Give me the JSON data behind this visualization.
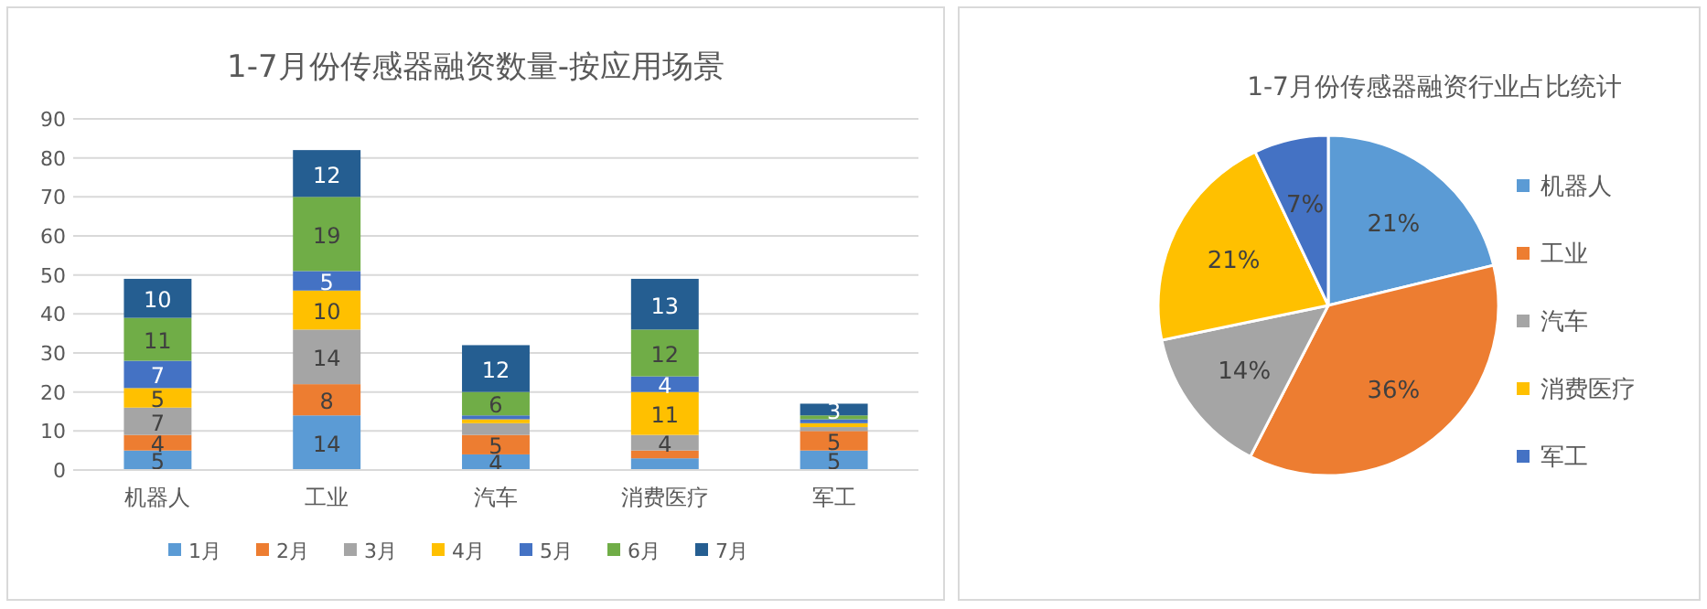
{
  "chart_data": [
    {
      "type": "bar",
      "title": "1-7月份传感器融资数量-按应用场景",
      "stacked": true,
      "categories": [
        "机器人",
        "工业",
        "汽车",
        "消费医疗",
        "军工"
      ],
      "ylim": [
        0,
        90
      ],
      "yticks": [
        0,
        10,
        20,
        30,
        40,
        50,
        60,
        70,
        80,
        90
      ],
      "grid": "y",
      "legend": "bottom",
      "series": [
        {
          "name": "1月",
          "color": "#5b9bd5",
          "values": [
            5,
            14,
            4,
            3,
            5
          ],
          "value_labels": [
            "5",
            "14",
            "4",
            null,
            "5"
          ]
        },
        {
          "name": "2月",
          "color": "#ed7d31",
          "values": [
            4,
            8,
            5,
            2,
            5
          ],
          "value_labels": [
            "4",
            "8",
            "5",
            null,
            "5"
          ]
        },
        {
          "name": "3月",
          "color": "#a5a5a5",
          "values": [
            7,
            14,
            3,
            4,
            1
          ],
          "value_labels": [
            "7",
            "14",
            null,
            "4",
            null
          ]
        },
        {
          "name": "4月",
          "color": "#ffc000",
          "values": [
            5,
            10,
            1,
            11,
            1
          ],
          "value_labels": [
            "5",
            "10",
            null,
            "11",
            null
          ]
        },
        {
          "name": "5月",
          "color": "#4472c4",
          "values": [
            7,
            5,
            1,
            4,
            1
          ],
          "value_labels": [
            "7",
            "5",
            null,
            "4",
            null
          ]
        },
        {
          "name": "6月",
          "color": "#70ad47",
          "values": [
            11,
            19,
            6,
            12,
            1
          ],
          "value_labels": [
            "11",
            "19",
            "6",
            "12",
            null
          ]
        },
        {
          "name": "7月",
          "color": "#255e91",
          "values": [
            10,
            12,
            12,
            13,
            3
          ],
          "value_labels": [
            "10",
            "12",
            "12",
            "13",
            "3"
          ]
        }
      ]
    },
    {
      "type": "pie",
      "title": "1-7月份传感器融资行业占比统计",
      "categories": [
        "机器人",
        "工业",
        "汽车",
        "消费医疗",
        "军工"
      ],
      "values": [
        21,
        36,
        14,
        21,
        7
      ],
      "value_labels": [
        "21%",
        "36%",
        "14%",
        "21%",
        "7%"
      ],
      "colors": [
        "#5b9bd5",
        "#ed7d31",
        "#a5a5a5",
        "#ffc000",
        "#4472c4"
      ],
      "legend": "right"
    }
  ]
}
